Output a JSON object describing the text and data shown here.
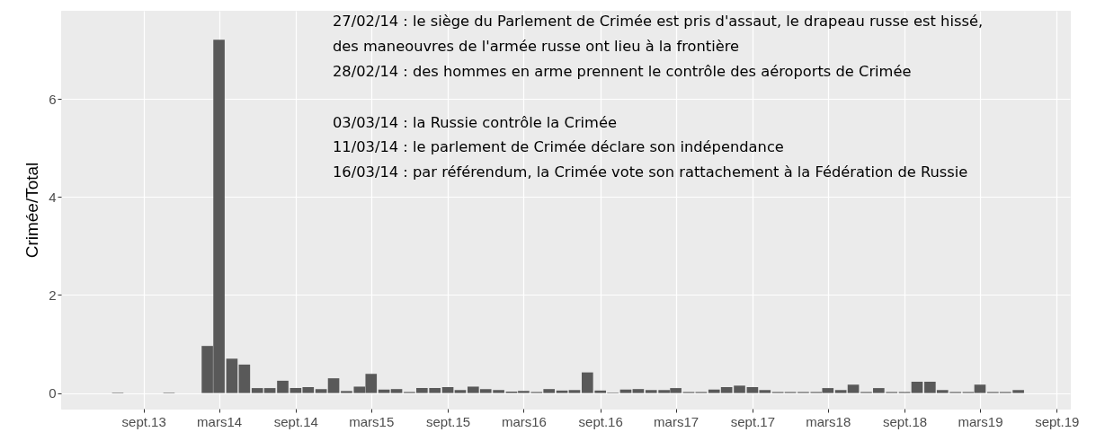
{
  "chart_data": {
    "type": "bar",
    "ylabel": "Crimée/Total",
    "color": "#595959",
    "x": [
      "2013-07-01",
      "2013-11-01",
      "2014-02-01",
      "2014-03-01",
      "2014-04-01",
      "2014-05-01",
      "2014-06-01",
      "2014-07-01",
      "2014-08-01",
      "2014-09-01",
      "2014-10-01",
      "2014-11-01",
      "2014-12-01",
      "2015-01-01",
      "2015-02-01",
      "2015-03-01",
      "2015-04-01",
      "2015-05-01",
      "2015-06-01",
      "2015-07-01",
      "2015-08-01",
      "2015-09-01",
      "2015-10-01",
      "2015-11-01",
      "2015-12-01",
      "2016-01-01",
      "2016-02-01",
      "2016-03-01",
      "2016-04-01",
      "2016-05-01",
      "2016-06-01",
      "2016-07-01",
      "2016-08-01",
      "2016-09-01",
      "2016-10-01",
      "2016-11-01",
      "2016-12-01",
      "2017-01-01",
      "2017-02-01",
      "2017-03-01",
      "2017-04-01",
      "2017-05-01",
      "2017-06-01",
      "2017-07-01",
      "2017-08-01",
      "2017-09-01",
      "2017-10-01",
      "2017-11-01",
      "2017-12-01",
      "2018-01-01",
      "2018-02-01",
      "2018-03-01",
      "2018-04-01",
      "2018-05-01",
      "2018-06-01",
      "2018-07-01",
      "2018-08-01",
      "2018-09-01",
      "2018-10-01",
      "2018-11-01",
      "2018-12-01",
      "2019-01-01",
      "2019-02-01",
      "2019-03-01",
      "2019-04-01",
      "2019-05-01",
      "2019-06-01"
    ],
    "values": [
      0.01,
      0.01,
      0.96,
      7.21,
      0.7,
      0.58,
      0.1,
      0.1,
      0.25,
      0.1,
      0.12,
      0.08,
      0.3,
      0.04,
      0.13,
      0.39,
      0.07,
      0.08,
      0.02,
      0.1,
      0.1,
      0.12,
      0.06,
      0.13,
      0.08,
      0.06,
      0.03,
      0.04,
      0.02,
      0.08,
      0.05,
      0.06,
      0.42,
      0.05,
      0.01,
      0.07,
      0.08,
      0.06,
      0.06,
      0.1,
      0.02,
      0.02,
      0.07,
      0.12,
      0.15,
      0.12,
      0.06,
      0.02,
      0.02,
      0.02,
      0.02,
      0.1,
      0.06,
      0.17,
      0.02,
      0.1,
      0.02,
      0.02,
      0.23,
      0.23,
      0.06,
      0.02,
      0.02,
      0.17,
      0.02,
      0.02,
      0.06
    ],
    "xlim": [
      "2013-02-26",
      "2019-09-22"
    ],
    "xticks": [
      {
        "value": "2013-09-01",
        "label": "sept.13"
      },
      {
        "value": "2014-03-01",
        "label": "mars14"
      },
      {
        "value": "2014-09-01",
        "label": "sept.14"
      },
      {
        "value": "2015-03-01",
        "label": "mars15"
      },
      {
        "value": "2015-09-01",
        "label": "sept.15"
      },
      {
        "value": "2016-03-01",
        "label": "mars16"
      },
      {
        "value": "2016-09-01",
        "label": "sept.16"
      },
      {
        "value": "2017-03-01",
        "label": "mars17"
      },
      {
        "value": "2017-09-01",
        "label": "sept.17"
      },
      {
        "value": "2018-03-01",
        "label": "mars18"
      },
      {
        "value": "2018-09-01",
        "label": "sept.18"
      },
      {
        "value": "2019-03-01",
        "label": "mars19"
      },
      {
        "value": "2019-09-01",
        "label": "sept.19"
      }
    ],
    "ylim": [
      -0.32,
      7.8
    ],
    "yticks": [
      0,
      2,
      4,
      6
    ],
    "grid": true,
    "annotations": [
      "27/02/14 : le siège du Parlement de Crimée est pris d'assaut, le drapeau russe est hissé,",
      "des maneouvres de l'armée russe ont lieu à la frontière",
      "28/02/14 : des hommes en arme prennent le contrôle des aéroports de Crimée",
      "03/03/14 : la Russie contrôle la Crimée",
      "11/03/14 : le parlement de Crimée déclare son indépendance",
      "16/03/14 : par référendum, la Crimée vote son rattachement à la Fédération de Russie"
    ]
  }
}
